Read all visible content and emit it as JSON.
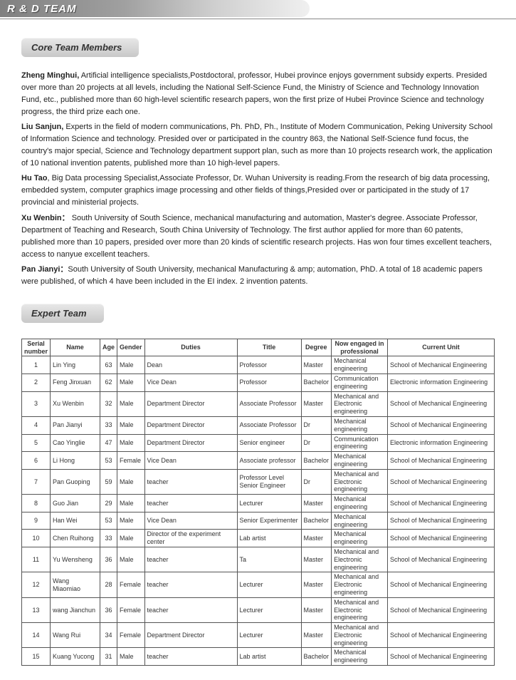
{
  "header": {
    "title": "R & D TEAM"
  },
  "sections": {
    "core_label": "Core Team Members",
    "expert_label": "Expert Team"
  },
  "bios": [
    {
      "name": "Zheng Minghui,",
      "text": " Artificial intelligence specialists,Postdoctoral, professor, Hubei province enjoys government subsidy experts. Presided over more than 20 projects at all levels, including the National Self-Science Fund, the Ministry of Science and Technology Innovation Fund, etc., published more than 60 high-level scientific research papers, won the first prize of Hubei Province Science and technology progress, the third prize each one."
    },
    {
      "name": "Liu Sanjun,",
      "text": " Experts in the field of modern communications, Ph. PhD, Ph., Institute of Modern Communication, Peking University School of Information Science and technology. Presided over or participated in the country 863, the National Self-Science fund focus, the country's major special, Science and Technology department support plan, such as more than 10 projects research work, the application of 10 national invention patents, published more than 10 high-level papers."
    },
    {
      "name": "Hu Tao",
      "text": ", Big Data processing Specialist,Associate Professor, Dr. Wuhan University is reading.From the research of big data processing, embedded system, computer graphics image processing and other fields of things,Presided over or participated in the study of 17 provincial and ministerial projects."
    },
    {
      "name": "Xu Wenbin：",
      "text": " South University of South Science, mechanical manufacturing and automation, Master's degree. Associate Professor, Department of Teaching and Research, South China University of Technology. The first author applied for more than 60 patents, published more than 10 papers, presided over more than 20 kinds of scientific research projects. Has won four times excellent teachers, access to nanyue excellent teachers."
    },
    {
      "name": "Pan Jianyi：",
      "text": "South University of South University, mechanical Manufacturing & amp; automation, PhD. A total of 18 academic papers were published, of which 4 have been included in the EI index. 2 invention patents."
    }
  ],
  "table": {
    "headers": [
      "Serial number",
      "Name",
      "Age",
      "Gender",
      "Duties",
      "Title",
      "Degree",
      "Now engaged in professional",
      "Current Unit"
    ],
    "rows": [
      [
        "1",
        "Lin Ying",
        "63",
        "Male",
        "Dean",
        "Professor",
        "Master",
        "Mechanical engineering",
        "School of Mechanical Engineering"
      ],
      [
        "2",
        "Feng Jinxuan",
        "62",
        "Male",
        "Vice Dean",
        "Professor",
        "Bachelor",
        "Communication engineering",
        "Electronic information Engineering"
      ],
      [
        "3",
        "Xu Wenbin",
        "32",
        "Male",
        "Department Director",
        "Associate Professor",
        "Master",
        "Mechanical and Electronic engineering",
        "School of Mechanical Engineering"
      ],
      [
        "4",
        "Pan Jianyi",
        "33",
        "Male",
        "Department Director",
        "Associate Professor",
        "Dr",
        "Mechanical engineering",
        "School of Mechanical Engineering"
      ],
      [
        "5",
        "Cao Yinglie",
        "47",
        "Male",
        "Department Director",
        "Senior engineer",
        "Dr",
        "Communication engineering",
        "Electronic information Engineering"
      ],
      [
        "6",
        "Li Hong",
        "53",
        "Female",
        "Vice Dean",
        "Associate professor",
        "Bachelor",
        "Mechanical engineering",
        "School of Mechanical Engineering"
      ],
      [
        "7",
        "Pan Guoping",
        "59",
        "Male",
        "teacher",
        "Professor Level Senior Engineer",
        "Dr",
        "Mechanical and Electronic engineering",
        "School of Mechanical Engineering"
      ],
      [
        "8",
        "Guo Jian",
        "29",
        "Male",
        "teacher",
        "Lecturer",
        "Master",
        "Mechanical engineering",
        "School of Mechanical Engineering"
      ],
      [
        "9",
        "Han Wei",
        "53",
        "Male",
        "Vice Dean",
        "Senior Experimenter",
        "Bachelor",
        "Mechanical engineering",
        "School of Mechanical Engineering"
      ],
      [
        "10",
        "Chen Ruihong",
        "33",
        "Male",
        "Director of the experiment center",
        "Lab artist",
        "Master",
        "Mechanical engineering",
        "School of Mechanical Engineering"
      ],
      [
        "11",
        "Yu Wensheng",
        "36",
        "Male",
        "teacher",
        "Ta",
        "Master",
        "Mechanical and Electronic engineering",
        "School of Mechanical Engineering"
      ],
      [
        "12",
        "Wang Miaomiao",
        "28",
        "Female",
        "teacher",
        "Lecturer",
        "Master",
        "Mechanical and Electronic engineering",
        "School of Mechanical Engineering"
      ],
      [
        "13",
        "wang Jianchun",
        "36",
        "Female",
        "teacher",
        "Lecturer",
        "Master",
        "Mechanical and Electronic engineering",
        "School of Mechanical Engineering"
      ],
      [
        "14",
        "Wang Rui",
        "34",
        "Female",
        "Department Director",
        "Lecturer",
        "Master",
        "Mechanical and Electronic engineering",
        "School of Mechanical Engineering"
      ],
      [
        "15",
        "Kuang Yucong",
        "31",
        "Male",
        "teacher",
        "Lab artist",
        "Bachelor",
        "Mechanical engineering",
        "School of Mechanical Engineering"
      ]
    ]
  }
}
